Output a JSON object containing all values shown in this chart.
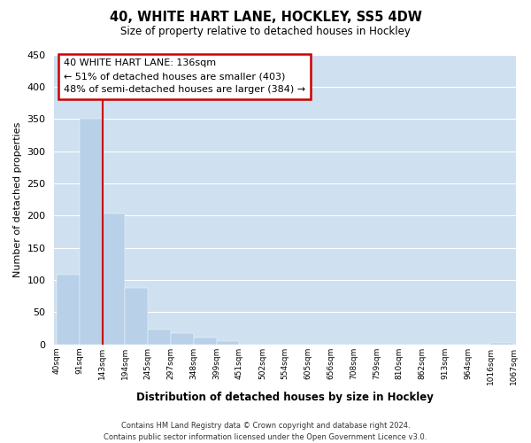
{
  "title": "40, WHITE HART LANE, HOCKLEY, SS5 4DW",
  "subtitle": "Size of property relative to detached houses in Hockley",
  "xlabel": "Distribution of detached houses by size in Hockley",
  "ylabel": "Number of detached properties",
  "bin_labels": [
    "40sqm",
    "91sqm",
    "143sqm",
    "194sqm",
    "245sqm",
    "297sqm",
    "348sqm",
    "399sqm",
    "451sqm",
    "502sqm",
    "554sqm",
    "605sqm",
    "656sqm",
    "708sqm",
    "759sqm",
    "810sqm",
    "862sqm",
    "913sqm",
    "964sqm",
    "1016sqm",
    "1067sqm"
  ],
  "counts": [
    108,
    350,
    203,
    88,
    23,
    17,
    10,
    5,
    0,
    0,
    0,
    0,
    0,
    0,
    0,
    0,
    0,
    0,
    0,
    3
  ],
  "bar_color": "#b8d0e8",
  "grid_color": "#ffffff",
  "background_color": "#cfe0f0",
  "vline_color": "#cc0000",
  "vline_pos": 2.0,
  "ylim": [
    0,
    450
  ],
  "yticks": [
    0,
    50,
    100,
    150,
    200,
    250,
    300,
    350,
    400,
    450
  ],
  "annotation_title": "40 WHITE HART LANE: 136sqm",
  "annotation_line1": "← 51% of detached houses are smaller (403)",
  "annotation_line2": "48% of semi-detached houses are larger (384) →",
  "annotation_box_color": "#ffffff",
  "annotation_box_edge_color": "#cc0000",
  "footer_line1": "Contains HM Land Registry data © Crown copyright and database right 2024.",
  "footer_line2": "Contains public sector information licensed under the Open Government Licence v3.0."
}
